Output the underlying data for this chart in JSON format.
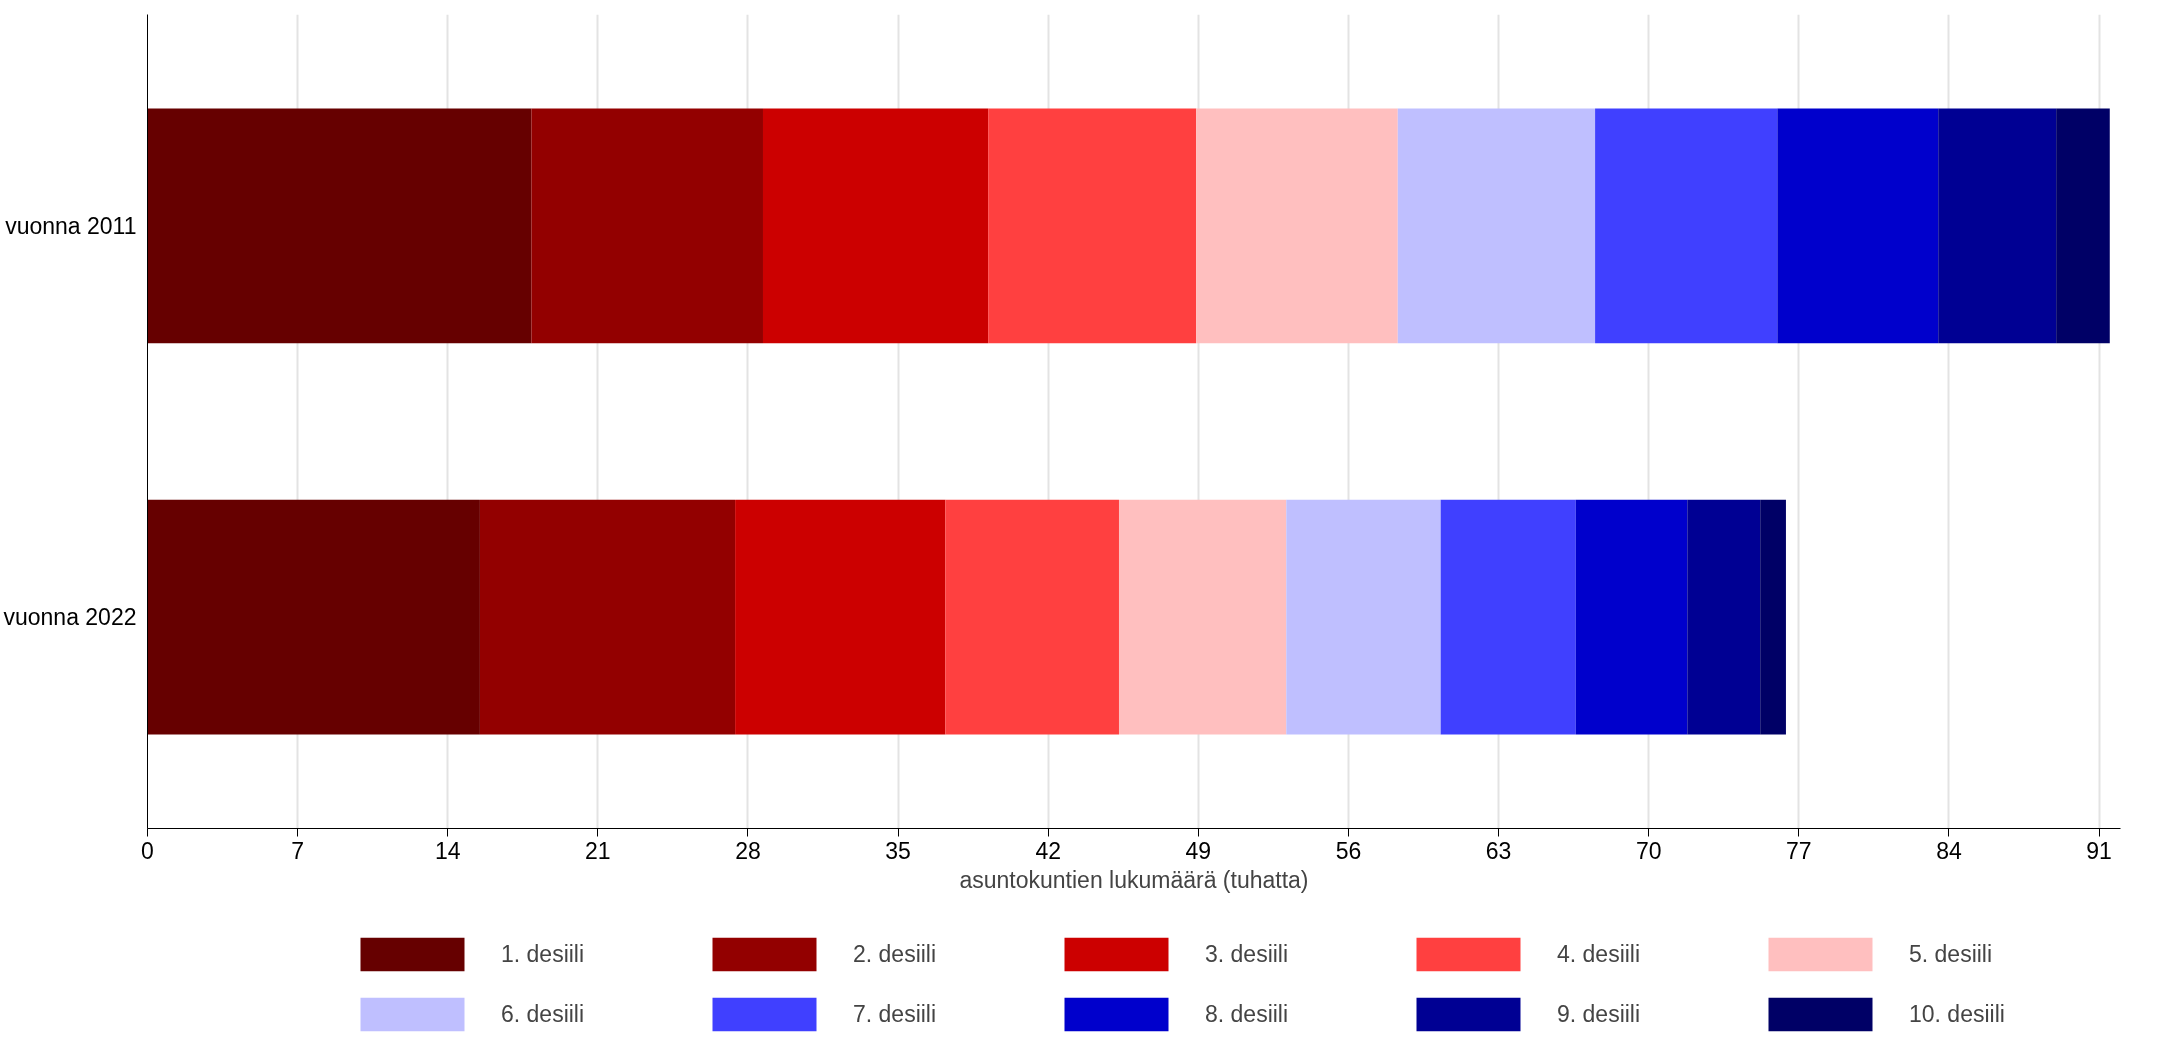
{
  "chart_data": {
    "type": "bar",
    "orientation": "horizontal",
    "stacked": true,
    "categories": [
      "vuonna 2011",
      "vuonna 2022"
    ],
    "xlabel": "asuntokuntien lukumäärä (tuhatta)",
    "xlim": [
      0,
      92
    ],
    "xticks": [
      0,
      7,
      14,
      21,
      28,
      35,
      42,
      49,
      56,
      63,
      70,
      77,
      84,
      91
    ],
    "grid": "x",
    "legend": "bottom",
    "series": [
      {
        "name": "1. desiili",
        "color": "#660000",
        "values": [
          17.9,
          15.5
        ]
      },
      {
        "name": "2. desiili",
        "color": "#930000",
        "values": [
          10.8,
          11.9
        ]
      },
      {
        "name": "3. desiili",
        "color": "#cc0000",
        "values": [
          10.5,
          9.8
        ]
      },
      {
        "name": "4. desiili",
        "color": "#ff4040",
        "values": [
          9.7,
          8.1
        ]
      },
      {
        "name": "5. desiili",
        "color": "#ffbfbf",
        "values": [
          9.4,
          7.8
        ]
      },
      {
        "name": "6. desiili",
        "color": "#bfbfff",
        "values": [
          9.2,
          7.2
        ]
      },
      {
        "name": "7. desiili",
        "color": "#4040ff",
        "values": [
          8.5,
          6.3
        ]
      },
      {
        "name": "8. desiili",
        "color": "#0000cc",
        "values": [
          7.5,
          5.2
        ]
      },
      {
        "name": "9. desiili",
        "color": "#000093",
        "values": [
          5.5,
          3.4
        ]
      },
      {
        "name": "10. desiili",
        "color": "#000066",
        "values": [
          2.5,
          1.2
        ]
      }
    ]
  }
}
